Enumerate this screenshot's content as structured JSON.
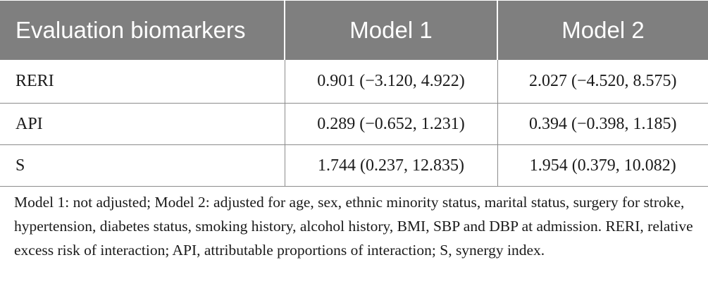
{
  "table": {
    "headers": [
      "Evaluation biomarkers",
      "Model 1",
      "Model 2"
    ],
    "rows": [
      [
        "RERI",
        "0.901 (−3.120, 4.922)",
        "2.027 (−4.520, 8.575)"
      ],
      [
        "API",
        "0.289 (−0.652, 1.231)",
        "0.394 (−0.398, 1.185)"
      ],
      [
        "S",
        "1.744 (0.237, 12.835)",
        "1.954 (0.379, 10.082)"
      ]
    ]
  },
  "footnote": "Model 1: not adjusted; Model 2: adjusted for age, sex, ethnic minority status, marital status, surgery for stroke, hypertension, diabetes status, smoking history, alcohol history, BMI, SBP and DBP at admission. RERI, relative excess risk of interaction; API, attributable proportions of interaction; S, synergy index.",
  "colors": {
    "header_background": "#7f7f7f",
    "header_text": "#ffffff",
    "rule": "#8c8c8c",
    "body_text": "#1a1a1a"
  }
}
